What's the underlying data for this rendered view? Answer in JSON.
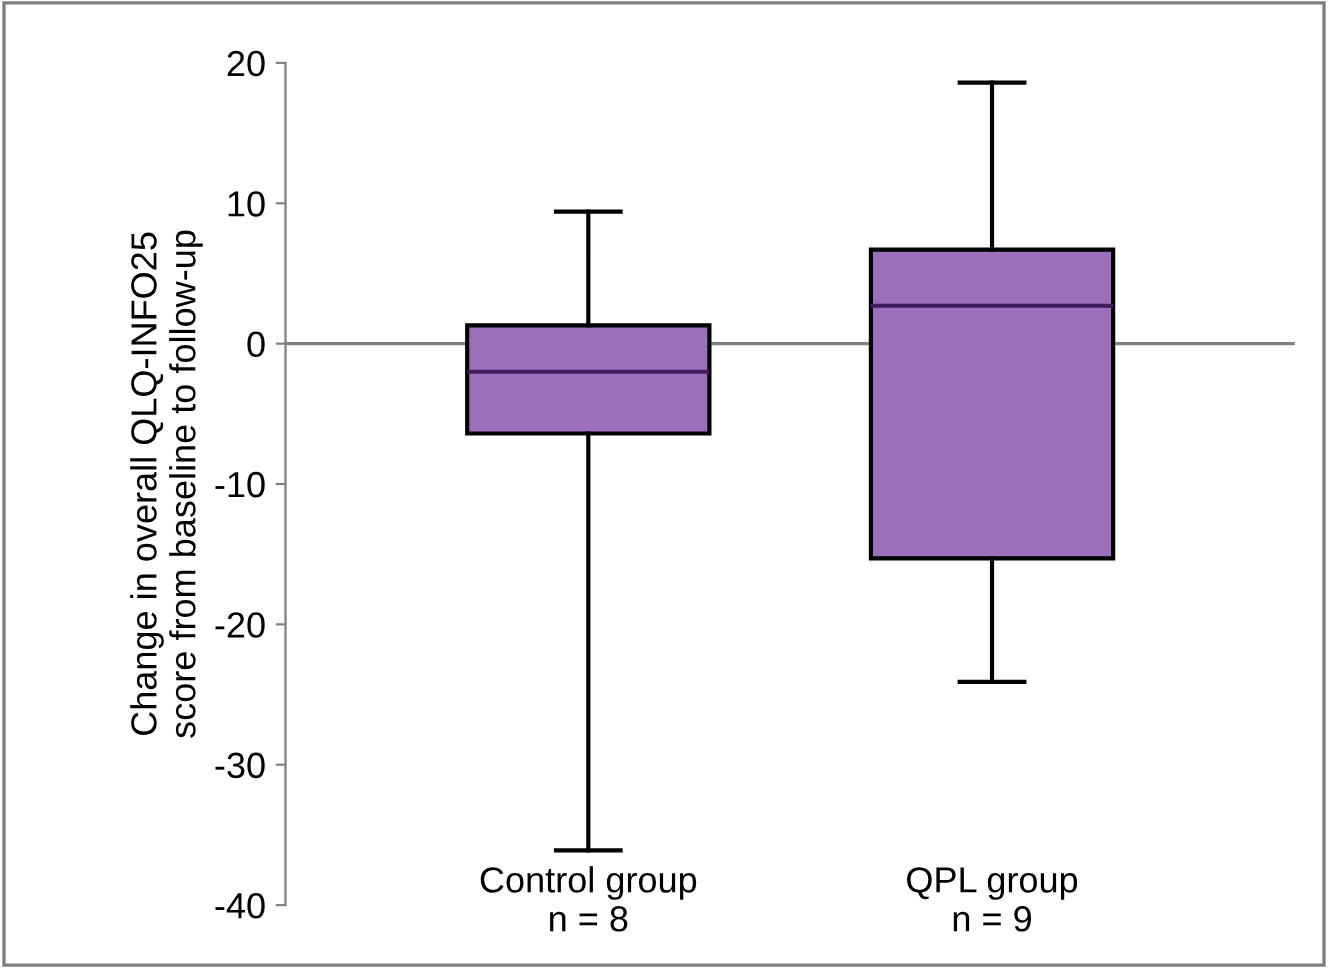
{
  "chart_data": {
    "type": "box",
    "ylabel": "Change in overall QLQ-INFO25\nscore from baseline to follow-up",
    "categories": [
      "Control group\nn = 8",
      "QPL group\nn = 9"
    ],
    "boxes": [
      {
        "low": -36.1,
        "q1": -6.4,
        "median": -2.0,
        "q3": 1.3,
        "high": 9.4
      },
      {
        "low": -24.1,
        "q1": -15.3,
        "median": 2.7,
        "q3": 6.7,
        "high": 18.6
      }
    ],
    "color": "#9b6fba",
    "ylim": [
      -40,
      20
    ],
    "yticks": [
      -40,
      -30,
      -20,
      -10,
      0,
      10,
      20
    ],
    "ref_lines": [
      {
        "axis": "y",
        "value": 0,
        "color": "#808080"
      }
    ],
    "grid": false
  }
}
